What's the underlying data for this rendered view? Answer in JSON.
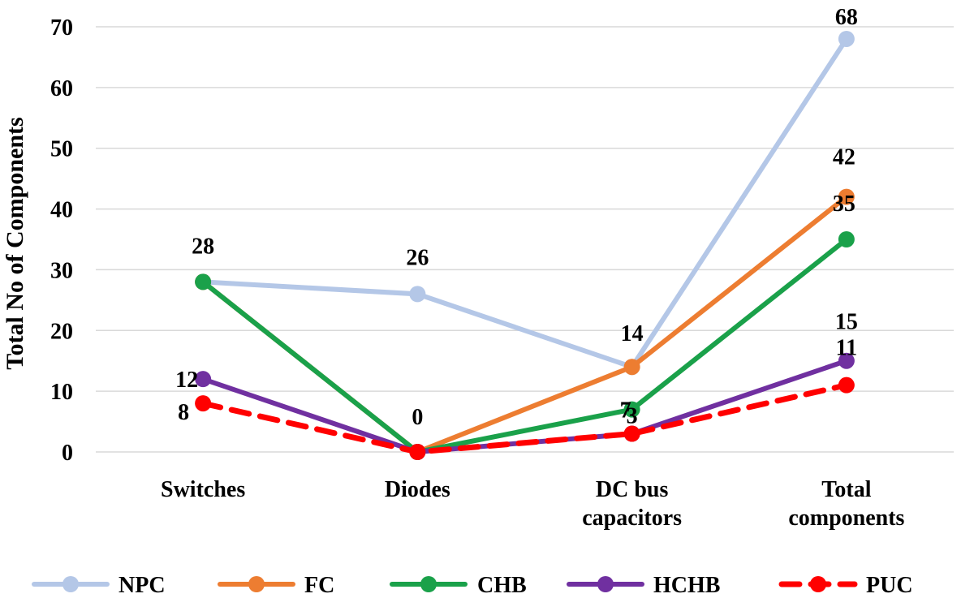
{
  "chart_data": {
    "type": "line",
    "title": "",
    "xlabel": "",
    "ylabel": "Total No of Components",
    "ylim": [
      0,
      70
    ],
    "yticks": [
      0,
      10,
      20,
      30,
      40,
      50,
      60,
      70
    ],
    "grid": true,
    "legend_position": "bottom",
    "categories": [
      [
        "Switches"
      ],
      [
        "Diodes"
      ],
      [
        "DC bus",
        "capacitors"
      ],
      [
        "Total",
        "components"
      ]
    ],
    "series": [
      {
        "name": "NPC",
        "color": "#b4c7e7",
        "dash": false,
        "values": [
          28,
          26,
          14,
          68
        ]
      },
      {
        "name": "FC",
        "color": "#ed7d31",
        "dash": false,
        "values": [
          28,
          0,
          14,
          42
        ]
      },
      {
        "name": "CHB",
        "color": "#1aa14a",
        "dash": false,
        "values": [
          28,
          0,
          7,
          35
        ]
      },
      {
        "name": "HCHB",
        "color": "#7030a0",
        "dash": false,
        "values": [
          12,
          0,
          3,
          15
        ]
      },
      {
        "name": "PUC",
        "color": "#ff0000",
        "dash": true,
        "values": [
          8,
          0,
          3,
          11
        ]
      }
    ],
    "data_labels": [
      {
        "text": "28",
        "category": 0,
        "value": 28
      },
      {
        "text": "12",
        "category": 0,
        "value": 12
      },
      {
        "text": "8",
        "category": 0,
        "value": 8
      },
      {
        "text": "26",
        "category": 1,
        "value": 26
      },
      {
        "text": "0",
        "category": 1,
        "value": 0
      },
      {
        "text": "14",
        "category": 2,
        "value": 14
      },
      {
        "text": "7",
        "category": 2,
        "value": 7
      },
      {
        "text": "3",
        "category": 2,
        "value": 3
      },
      {
        "text": "68",
        "category": 3,
        "value": 68
      },
      {
        "text": "42",
        "category": 3,
        "value": 42
      },
      {
        "text": "35",
        "category": 3,
        "value": 35
      },
      {
        "text": "15",
        "category": 3,
        "value": 15
      },
      {
        "text": "11",
        "category": 3,
        "value": 11
      }
    ]
  }
}
